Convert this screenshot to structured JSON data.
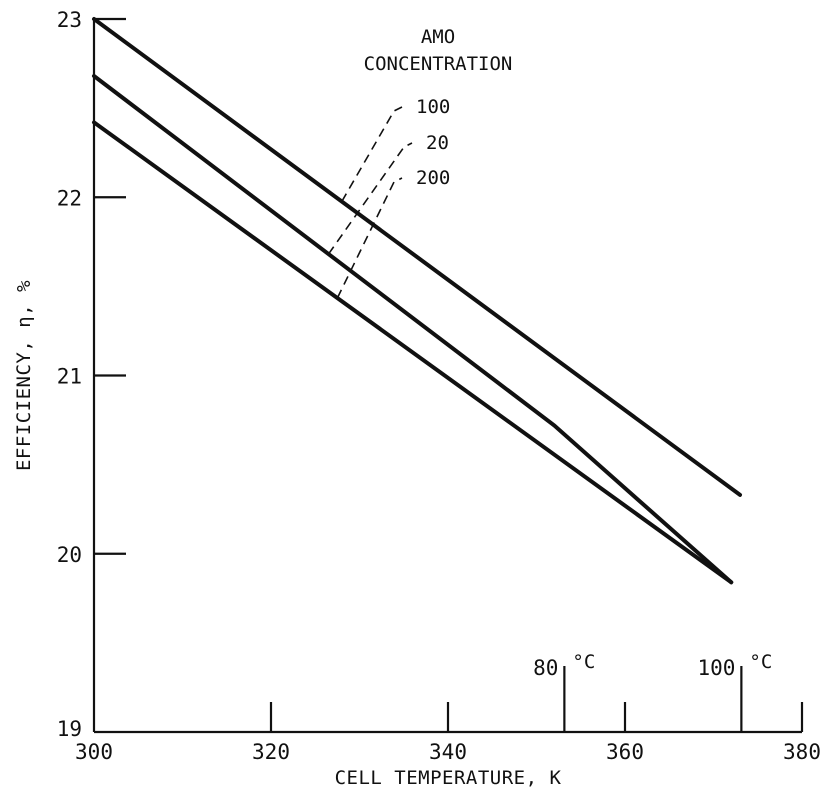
{
  "chart_data": {
    "type": "line",
    "xlabel": "CELL TEMPERATURE, K",
    "ylabel": "EFFICIENCY, η, %",
    "xlim": [
      300,
      380
    ],
    "ylim": [
      19,
      23
    ],
    "xticks": [
      300,
      320,
      340,
      360,
      380
    ],
    "yticks": [
      19,
      20,
      21,
      22,
      23
    ],
    "grid": false,
    "legend_title": [
      "AMO",
      "CONCENTRATION"
    ],
    "legend_placement": "top-center",
    "series": [
      {
        "name": "100",
        "x": [
          300,
          373
        ],
        "y": [
          23.0,
          20.33
        ]
      },
      {
        "name": "20",
        "x": [
          300,
          352,
          372
        ],
        "y": [
          22.68,
          20.72,
          19.84
        ]
      },
      {
        "name": "200",
        "x": [
          300,
          372
        ],
        "y": [
          22.42,
          19.84
        ]
      }
    ],
    "annotations": [
      {
        "value": "80",
        "unit": "°C",
        "x": 353.15
      },
      {
        "value": "100",
        "unit": "°C",
        "x": 373.15
      }
    ]
  }
}
